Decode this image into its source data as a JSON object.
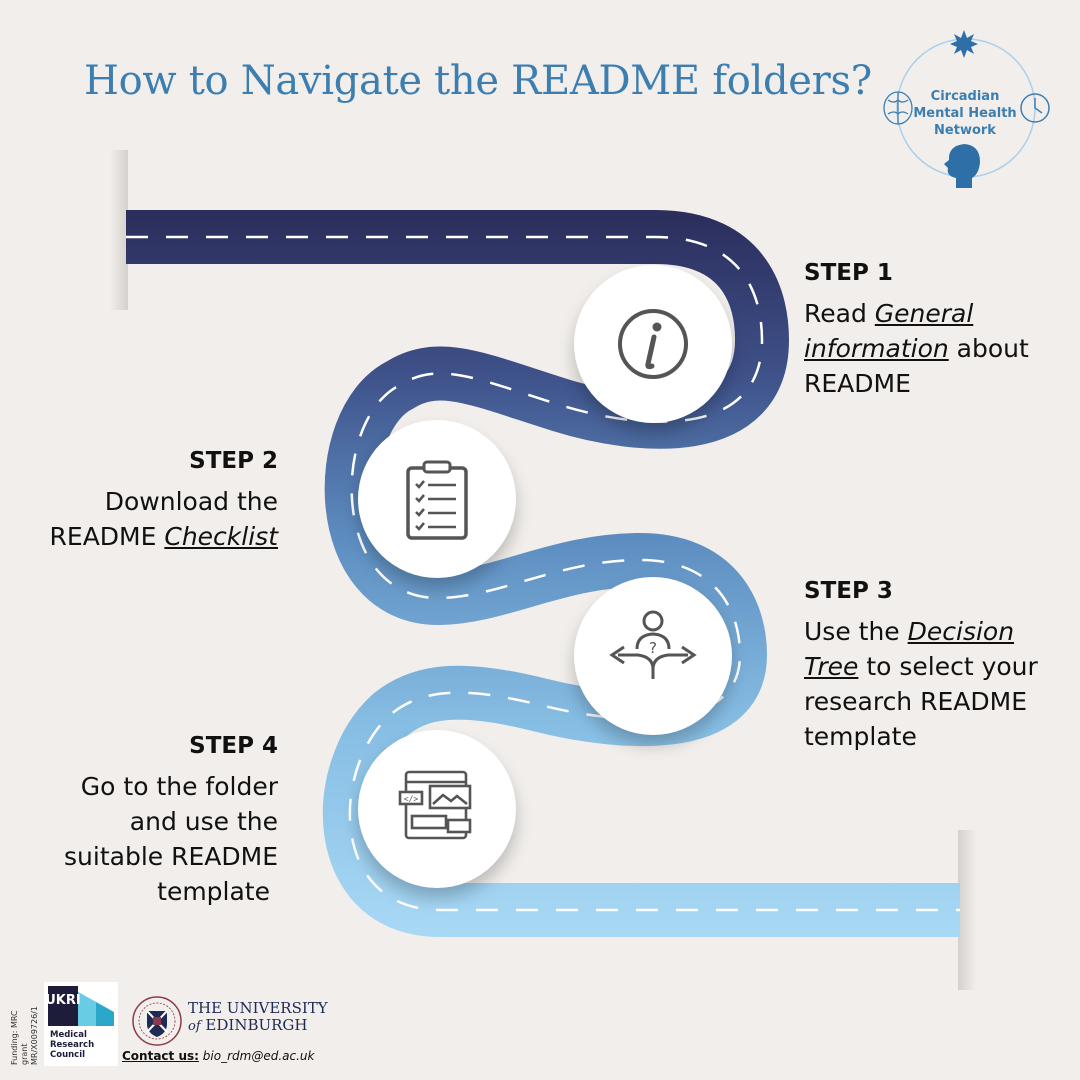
{
  "title": "How to Navigate the README folders?",
  "network": {
    "line1": "Circadian",
    "line2": "Mental Health",
    "line3": "Network",
    "icons": [
      "starburst-icon",
      "brain-icon",
      "clock-icon",
      "head-icon"
    ]
  },
  "steps": [
    {
      "heading": "STEP 1",
      "text_before": "Read ",
      "link": "General information",
      "text_after": " about README",
      "icon": "info-icon"
    },
    {
      "heading": "STEP 2",
      "text_before": "Download the README ",
      "link": "Checklist",
      "text_after": "",
      "icon": "clipboard-checklist-icon"
    },
    {
      "heading": "STEP 3",
      "text_before": "Use the ",
      "link": "Decision Tree",
      "text_after": " to select your research README template",
      "icon": "decision-arrows-icon"
    },
    {
      "heading": "STEP 4",
      "line1": "Go to the folder",
      "line2": "and use the",
      "line3": "suitable README",
      "line4": "template",
      "icon": "template-layout-icon"
    }
  ],
  "footer": {
    "funding_line1": "Funding: MRC grant",
    "funding_line2": "MR/X009726/1",
    "ukri": "UKRI",
    "mrc_line1": "Medical",
    "mrc_line2": "Research",
    "mrc_line3": "Council",
    "university_line1": "THE UNIVERSITY",
    "university_of": "of",
    "university_line2": "EDINBURGH",
    "contact_label": "Contact us:",
    "contact_email": "bio_rdm@ed.ac.uk"
  },
  "colors": {
    "background": "#f1eeeb",
    "title": "#3d7eb1",
    "road_start": "#2c2f5c",
    "road_end": "#a9d8f4"
  }
}
